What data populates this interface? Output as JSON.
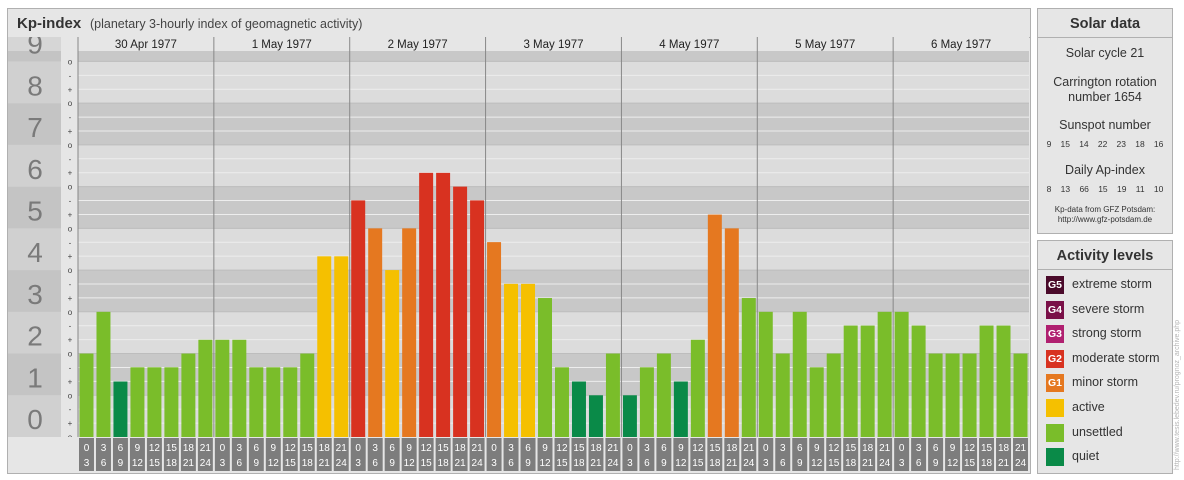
{
  "header": {
    "title": "Kp-index",
    "subtitle": "(planetary 3-hourly index of geomagnetic activity)"
  },
  "solar": {
    "title": "Solar data",
    "cycle": "Solar cycle 21",
    "carrington_line1": "Carrington rotation",
    "carrington_line2": "number 1654",
    "sunspot_title": "Sunspot number",
    "sunspot_values": [
      "9",
      "15",
      "14",
      "22",
      "23",
      "18",
      "16"
    ],
    "ap_title": "Daily Ap-index",
    "ap_values": [
      "8",
      "13",
      "66",
      "15",
      "19",
      "11",
      "10"
    ],
    "source_line1": "Kp-data from GFZ Potsdam:",
    "source_line2": "http://www.gfz-potsdam.de"
  },
  "legend": {
    "title": "Activity levels",
    "items": [
      {
        "badge": "G5",
        "label": "extreme storm",
        "color": "#4a0a2a"
      },
      {
        "badge": "G4",
        "label": "severe storm",
        "color": "#7a1048"
      },
      {
        "badge": "G3",
        "label": "strong storm",
        "color": "#b02070"
      },
      {
        "badge": "G2",
        "label": "moderate storm",
        "color": "#d83220"
      },
      {
        "badge": "G1",
        "label": "minor storm",
        "color": "#e57820"
      },
      {
        "badge": "",
        "label": "active",
        "color": "#f5c000"
      },
      {
        "badge": "",
        "label": "unsettled",
        "color": "#7abd2a"
      },
      {
        "badge": "",
        "label": "quiet",
        "color": "#0a8a48"
      }
    ]
  },
  "watermark": "http://www.tesis.lebedev.ru/prognoz_archive.php",
  "chart_data": {
    "type": "bar",
    "ylabel": "",
    "ylim": [
      0,
      9
    ],
    "y_ticks": [
      "0",
      "1",
      "2",
      "3",
      "4",
      "5",
      "6",
      "7",
      "8",
      "9"
    ],
    "minor_tick_marks": [
      "o",
      "+",
      "-"
    ],
    "days": [
      "30 Apr 1977",
      "1 May 1977",
      "2 May 1977",
      "3 May 1977",
      "4 May 1977",
      "5 May 1977",
      "6 May 1977"
    ],
    "interval_start_hours": [
      "0",
      "3",
      "6",
      "9",
      "12",
      "15",
      "18",
      "21"
    ],
    "interval_end_hours": [
      "3",
      "6",
      "9",
      "12",
      "15",
      "18",
      "21",
      "24"
    ],
    "series": [
      {
        "values": [
          2.0,
          3.0,
          1.33,
          1.67,
          1.67,
          1.67,
          2.0,
          2.33,
          2.33,
          2.33,
          1.67,
          1.67,
          1.67,
          2.0,
          4.33,
          4.33,
          5.67,
          5.0,
          4.0,
          5.0,
          6.33,
          6.33,
          6.0,
          5.67,
          4.67,
          3.67,
          3.67,
          3.33,
          1.67,
          1.33,
          1.0,
          2.0,
          1.0,
          1.67,
          2.0,
          1.33,
          2.33,
          5.33,
          5.0,
          3.33,
          3.0,
          2.0,
          3.0,
          1.67,
          2.0,
          2.67,
          2.67,
          3.0,
          3.0,
          2.67,
          2.0,
          2.0,
          2.0,
          2.67,
          2.67,
          2.0
        ]
      }
    ],
    "colors": {
      "quiet": "#0a8a48",
      "unsettled": "#7abd2a",
      "active": "#f5c000",
      "minor_storm": "#e57820",
      "moderate_storm": "#d83220"
    }
  }
}
